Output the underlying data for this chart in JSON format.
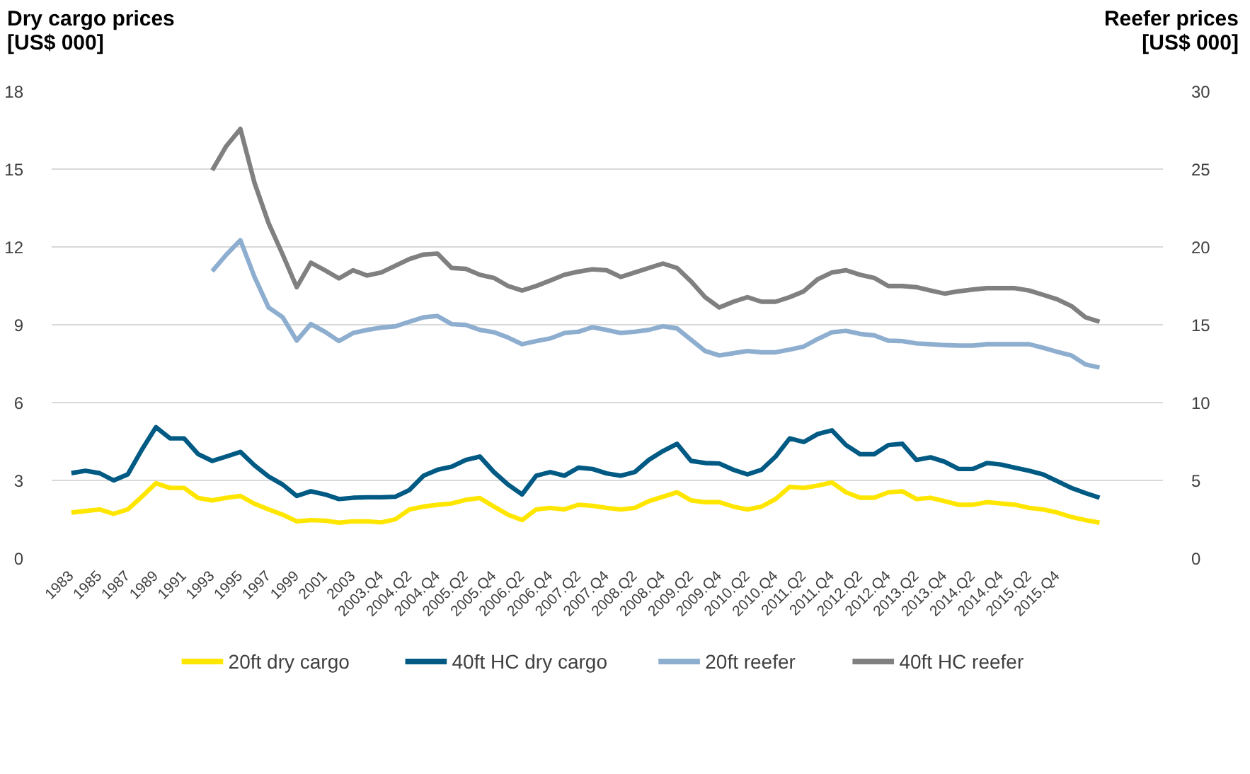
{
  "chart_data": {
    "type": "line",
    "ylabel": "Dry cargo prices [US$ 000]",
    "y2label": "Reefer prices [US$ 000]",
    "categories": [
      "1983",
      null,
      "1985",
      null,
      "1987",
      null,
      "1989",
      null,
      "1991",
      null,
      "1993",
      null,
      "1995",
      null,
      "1997",
      null,
      "1999",
      null,
      "2001",
      null,
      "2003",
      null,
      "2003.Q4",
      null,
      "2004.Q2",
      null,
      "2004.Q4",
      null,
      "2005.Q2",
      null,
      "2005.Q4",
      null,
      "2006.Q2",
      null,
      "2006.Q4",
      null,
      "2007.Q2",
      null,
      "2007.Q4",
      null,
      "2008.Q2",
      null,
      "2008.Q4",
      null,
      "2009.Q2",
      null,
      "2009.Q4",
      null,
      "2010.Q2",
      null,
      "2010.Q4",
      null,
      "2011.Q2",
      null,
      "2011.Q4",
      null,
      "2012.Q2",
      null,
      "2012.Q4",
      null,
      "2013.Q2",
      null,
      "2013.Q4",
      null,
      "2014.Q2",
      null,
      "2014.Q4",
      null,
      "2015.Q2",
      null,
      "2015.Q4",
      null,
      null,
      null
    ],
    "series": [
      {
        "name": "20ft dry cargo",
        "color": "#ffe600",
        "values": [
          1.76,
          1.82,
          1.88,
          1.71,
          1.88,
          2.37,
          2.89,
          2.71,
          2.71,
          2.32,
          2.23,
          2.33,
          2.4,
          2.1,
          1.88,
          1.68,
          1.42,
          1.47,
          1.45,
          1.37,
          1.42,
          1.42,
          1.38,
          1.5,
          1.88,
          1.99,
          2.06,
          2.11,
          2.25,
          2.32,
          1.99,
          1.68,
          1.47,
          1.88,
          1.94,
          1.88,
          2.06,
          2.02,
          1.94,
          1.88,
          1.94,
          2.2,
          2.37,
          2.54,
          2.23,
          2.16,
          2.16,
          1.99,
          1.88,
          1.99,
          2.28,
          2.75,
          2.71,
          2.8,
          2.92,
          2.54,
          2.33,
          2.33,
          2.54,
          2.58,
          2.28,
          2.33,
          2.2,
          2.06,
          2.06,
          2.16,
          2.11,
          2.06,
          1.94,
          1.88,
          1.76,
          1.59,
          1.47,
          1.37
        ]
      },
      {
        "name": "40ft HC dry cargo",
        "color": "#005a84",
        "values": [
          3.28,
          3.37,
          3.28,
          3.0,
          3.23,
          4.18,
          5.05,
          4.62,
          4.62,
          4.01,
          3.75,
          3.92,
          4.1,
          3.58,
          3.15,
          2.84,
          2.4,
          2.58,
          2.46,
          2.28,
          2.33,
          2.35,
          2.35,
          2.37,
          2.63,
          3.18,
          3.41,
          3.53,
          3.79,
          3.92,
          3.32,
          2.84,
          2.46,
          3.18,
          3.32,
          3.18,
          3.49,
          3.44,
          3.27,
          3.18,
          3.32,
          3.79,
          4.13,
          4.41,
          3.75,
          3.67,
          3.65,
          3.41,
          3.23,
          3.41,
          3.92,
          4.62,
          4.48,
          4.79,
          4.93,
          4.36,
          4.01,
          4.01,
          4.36,
          4.41,
          3.79,
          3.89,
          3.72,
          3.44,
          3.44,
          3.67,
          3.61,
          3.49,
          3.37,
          3.23,
          2.97,
          2.71,
          2.51,
          2.33
        ]
      },
      {
        "name": "20ft reefer",
        "color": "#8eaed0",
        "axis": "y2",
        "values": [
          null,
          null,
          null,
          null,
          null,
          null,
          null,
          null,
          null,
          null,
          18.44,
          19.5,
          20.43,
          18.07,
          16.11,
          15.48,
          13.98,
          15.04,
          14.55,
          13.95,
          14.47,
          14.67,
          14.81,
          14.9,
          15.19,
          15.48,
          15.56,
          15.04,
          14.99,
          14.67,
          14.52,
          14.18,
          13.75,
          13.95,
          14.12,
          14.47,
          14.55,
          14.84,
          14.67,
          14.47,
          14.55,
          14.67,
          14.9,
          14.76,
          14.03,
          13.31,
          13.03,
          13.17,
          13.31,
          13.23,
          13.23,
          13.4,
          13.6,
          14.09,
          14.52,
          14.61,
          14.41,
          14.32,
          13.98,
          13.95,
          13.8,
          13.75,
          13.69,
          13.66,
          13.66,
          13.75,
          13.75,
          13.75,
          13.75,
          13.52,
          13.26,
          13.03,
          12.45,
          12.25
        ]
      },
      {
        "name": "40ft HC reefer",
        "color": "#808080",
        "axis": "y2",
        "values": [
          null,
          null,
          null,
          null,
          null,
          null,
          null,
          null,
          null,
          null,
          24.93,
          26.48,
          27.58,
          24.12,
          21.53,
          19.51,
          17.41,
          18.99,
          18.5,
          17.98,
          18.5,
          18.16,
          18.36,
          18.79,
          19.22,
          19.51,
          19.57,
          18.65,
          18.59,
          18.21,
          18.01,
          17.49,
          17.2,
          17.49,
          17.84,
          18.21,
          18.41,
          18.56,
          18.5,
          18.07,
          18.36,
          18.65,
          18.93,
          18.65,
          17.78,
          16.77,
          16.11,
          16.48,
          16.77,
          16.48,
          16.48,
          16.77,
          17.15,
          17.93,
          18.36,
          18.5,
          18.21,
          18.01,
          17.49,
          17.49,
          17.41,
          17.2,
          17.0,
          17.15,
          17.26,
          17.35,
          17.35,
          17.35,
          17.2,
          16.92,
          16.63,
          16.2,
          15.48,
          15.19
        ]
      }
    ],
    "ylim": [
      0,
      18
    ],
    "yticks": [
      0,
      3,
      6,
      9,
      12,
      15,
      18
    ],
    "y2lim": [
      0,
      30
    ],
    "y2ticks": [
      0,
      5,
      10,
      15,
      20,
      25,
      30
    ],
    "grid": "y",
    "legend": "bottom"
  }
}
